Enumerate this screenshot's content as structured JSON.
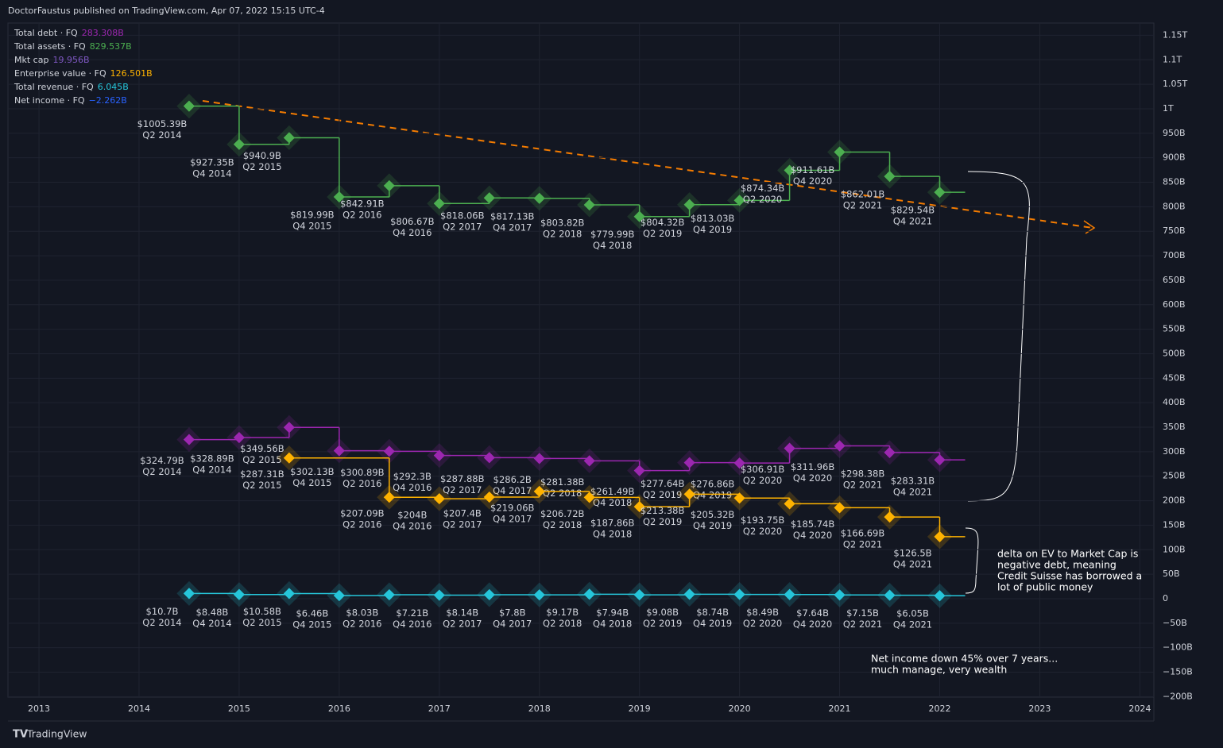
{
  "header": "DoctorFaustus published on TradingView.com, Apr 07, 2022 15:15 UTC-4",
  "footer": "TradingView",
  "chart_data": {
    "type": "line",
    "step": true,
    "legend": [
      {
        "name": "Total debt · FQ",
        "value": "283.308B",
        "color": "#9c27b0"
      },
      {
        "name": "Total assets · FQ",
        "value": "829.537B",
        "color": "#4caf50"
      },
      {
        "name": "Mkt cap",
        "value": "19.956B",
        "color": "#7e57c2"
      },
      {
        "name": "Enterprise value · FQ",
        "value": "126.501B",
        "color": "#ffb300"
      },
      {
        "name": "Total revenue · FQ",
        "value": "6.045B",
        "color": "#26c6da"
      },
      {
        "name": "Net income · FQ",
        "value": "−2.262B",
        "color": "#2962ff"
      }
    ],
    "series": [
      {
        "color": "#4caf50",
        "x": [
          2014.5,
          2015,
          2015.5,
          2016,
          2016.5,
          2017,
          2017.5,
          2018,
          2018.5,
          2019,
          2019.5,
          2020,
          2020.5,
          2021,
          2021.5,
          2022
        ],
        "periods": [
          "Q2 2014",
          "Q4 2014",
          "Q2 2015",
          "Q4 2015",
          "Q2 2016",
          "Q4 2016",
          "Q2 2017",
          "Q4 2017",
          "Q2 2018",
          "Q4 2018",
          "Q2 2019",
          "Q4 2019",
          "Q2 2020",
          "Q4 2020",
          "Q2 2021",
          "Q4 2021"
        ],
        "values": [
          1005.39,
          927.35,
          940.9,
          819.99,
          842.91,
          806.67,
          818.06,
          817.13,
          803.82,
          779.99,
          804.32,
          813.03,
          874.34,
          911.61,
          862.01,
          829.54
        ],
        "value_labels": [
          "$1005.39B",
          "$927.35B",
          "$940.9B",
          "$819.99B",
          "$842.91B",
          "$806.67B",
          "$818.06B",
          "$817.13B",
          "$803.82B",
          "$779.99B",
          "$804.32B",
          "$813.03B",
          "$874.34B",
          "$911.61B",
          "$862.01B",
          "$829.54B"
        ]
      },
      {
        "color": "#9c27b0",
        "x": [
          2014.5,
          2015,
          2015.5,
          2016,
          2016.5,
          2017,
          2017.5,
          2018,
          2018.5,
          2019,
          2019.5,
          2020,
          2020.5,
          2021,
          2021.5,
          2022
        ],
        "periods": [
          "Q2 2014",
          "Q4 2014",
          "Q2 2015",
          "Q4 2015",
          "Q2 2016",
          "Q4 2016",
          "Q2 2017",
          "Q4 2017",
          "Q2 2018",
          "Q4 2018",
          "Q2 2019",
          "Q4 2019",
          "Q2 2020",
          "Q4 2020",
          "Q2 2021",
          "Q4 2021"
        ],
        "values": [
          324.79,
          328.89,
          349.56,
          302.13,
          300.89,
          292.3,
          287.88,
          286.2,
          281.38,
          261.49,
          277.64,
          276.86,
          306.91,
          311.96,
          298.38,
          283.31
        ],
        "value_labels": [
          "$324.79B",
          "$328.89B",
          "$349.56B",
          "$302.13B",
          "$300.89B",
          "$292.3B",
          "$287.88B",
          "$286.2B",
          "$281.38B",
          "$261.49B",
          "$277.64B",
          "$276.86B",
          "$306.91B",
          "$311.96B",
          "$298.38B",
          "$283.31B"
        ]
      },
      {
        "color": "#ffb300",
        "x": [
          2015.5,
          2016.5,
          2017,
          2017.5,
          2018,
          2018.5,
          2019,
          2019.5,
          2020,
          2020.5,
          2021,
          2021.5,
          2022
        ],
        "periods": [
          "Q2 2015",
          "Q2 2016",
          "Q4 2016",
          "Q2 2017",
          "Q4 2017",
          "Q2 2018",
          "Q4 2018",
          "Q2 2019",
          "Q4 2019",
          "Q2 2020",
          "Q4 2020",
          "Q2 2021",
          "Q4 2021"
        ],
        "values": [
          287.31,
          207.09,
          204,
          207.4,
          219.06,
          206.72,
          187.86,
          213.38,
          205.32,
          193.75,
          185.74,
          166.69,
          126.5
        ],
        "value_labels": [
          "$287.31B",
          "$207.09B",
          "$204B",
          "$207.4B",
          "$219.06B",
          "$206.72B",
          "$187.86B",
          "$213.38B",
          "$205.32B",
          "$193.75B",
          "$185.74B",
          "$166.69B",
          "$126.5B"
        ]
      },
      {
        "color": "#26c6da",
        "x": [
          2014.5,
          2015,
          2015.5,
          2016,
          2016.5,
          2017,
          2017.5,
          2018,
          2018.5,
          2019,
          2019.5,
          2020,
          2020.5,
          2021,
          2021.5,
          2022
        ],
        "periods": [
          "Q2 2014",
          "Q4 2014",
          "Q2 2015",
          "Q4 2015",
          "Q2 2016",
          "Q4 2016",
          "Q2 2017",
          "Q4 2017",
          "Q2 2018",
          "Q4 2018",
          "Q2 2019",
          "Q4 2019",
          "Q2 2020",
          "Q4 2020",
          "Q2 2021",
          "Q4 2021"
        ],
        "values": [
          10.7,
          8.48,
          10.58,
          6.46,
          8.03,
          7.21,
          8.14,
          7.8,
          9.17,
          7.94,
          9.08,
          8.74,
          8.49,
          7.64,
          7.15,
          6.05
        ],
        "value_labels": [
          "$10.7B",
          "$8.48B",
          "$10.58B",
          "$6.46B",
          "$8.03B",
          "$7.21B",
          "$8.14B",
          "$7.8B",
          "$9.17B",
          "$7.94B",
          "$9.08B",
          "$8.74B",
          "$8.49B",
          "$7.64B",
          "$7.15B",
          "$6.05B"
        ]
      }
    ],
    "annotations": [
      [
        "delta on EV to Market Cap is",
        "negative debt, meaning",
        "Credit Suisse has borrowed a",
        "lot of public money"
      ],
      [
        "Net income down 45% over 7 years...",
        "much manage, very wealth"
      ]
    ],
    "xlim": [
      2012.69,
      2024.14
    ],
    "xticks": [
      2013,
      2014,
      2015,
      2016,
      2017,
      2018,
      2019,
      2020,
      2021,
      2022,
      2023,
      2024
    ],
    "ylim": [
      -201,
      1175
    ],
    "yticks": [
      {
        "value": 1150,
        "label": "1.15T"
      },
      {
        "value": 1100,
        "label": "1.1T"
      },
      {
        "value": 1050,
        "label": "1.05T"
      },
      {
        "value": 1000,
        "label": "1T"
      },
      {
        "value": 950,
        "label": "950B"
      },
      {
        "value": 900,
        "label": "900B"
      },
      {
        "value": 850,
        "label": "850B"
      },
      {
        "value": 800,
        "label": "800B"
      },
      {
        "value": 750,
        "label": "750B"
      },
      {
        "value": 700,
        "label": "700B"
      },
      {
        "value": 650,
        "label": "650B"
      },
      {
        "value": 600,
        "label": "600B"
      },
      {
        "value": 550,
        "label": "550B"
      },
      {
        "value": 500,
        "label": "500B"
      },
      {
        "value": 450,
        "label": "450B"
      },
      {
        "value": 400,
        "label": "400B"
      },
      {
        "value": 350,
        "label": "350B"
      },
      {
        "value": 300,
        "label": "300B"
      },
      {
        "value": 250,
        "label": "250B"
      },
      {
        "value": 200,
        "label": "200B"
      },
      {
        "value": 150,
        "label": "150B"
      },
      {
        "value": 100,
        "label": "100B"
      },
      {
        "value": 50,
        "label": "50B"
      },
      0,
      {
        "value": -50,
        "label": "−50B"
      },
      {
        "value": -100,
        "label": "−100B"
      },
      {
        "value": -150,
        "label": "−150B"
      },
      {
        "value": -200,
        "label": "−200B"
      }
    ],
    "grid": true
  }
}
